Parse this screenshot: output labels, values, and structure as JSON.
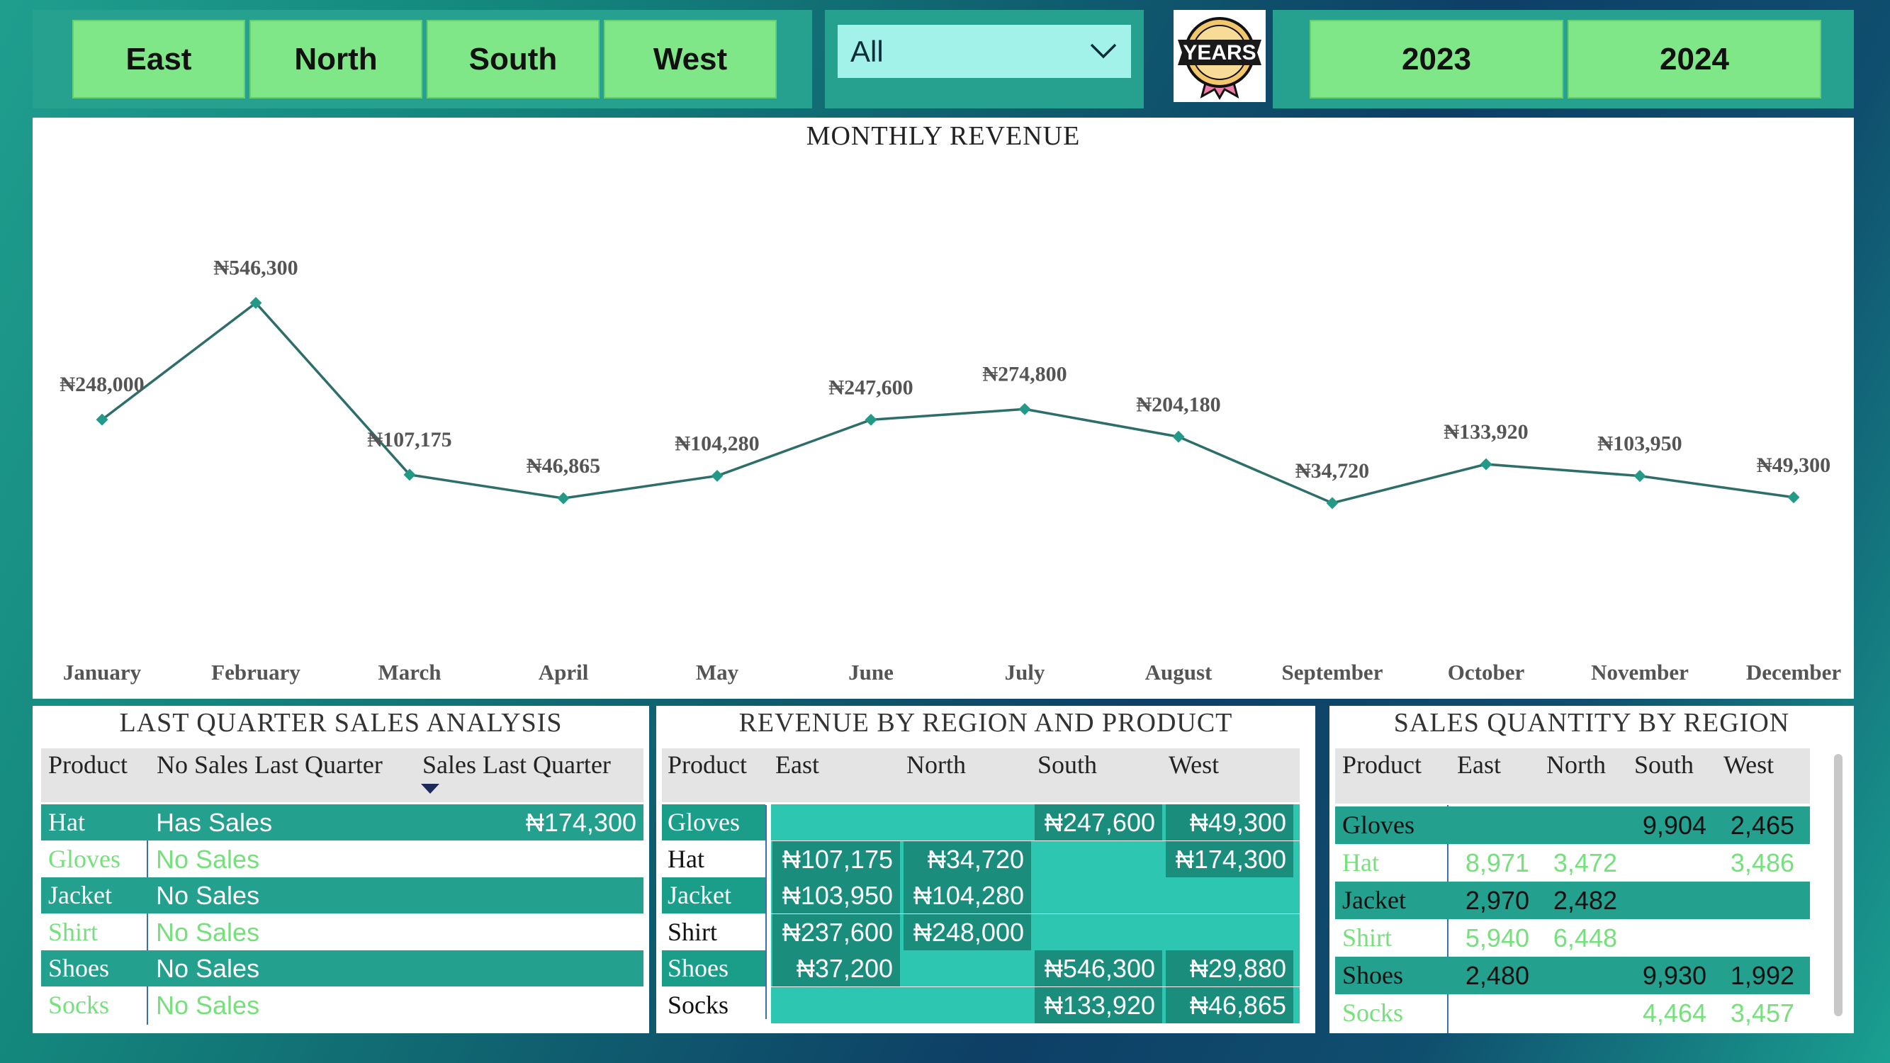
{
  "regions": [
    "East",
    "North",
    "South",
    "West"
  ],
  "dropdown": {
    "value": "All"
  },
  "badge": {
    "text": "YEARS"
  },
  "years": [
    "2023",
    "2024"
  ],
  "colors": {
    "slicer_bg": "#26a08f",
    "button": "#7fe787",
    "line": "#2e6e6a",
    "marker": "#239a88",
    "table_dark_row": "#23a08e",
    "light_text": "#76e07d"
  },
  "chart": {
    "title": "MONTHLY REVENUE"
  },
  "chart_data": {
    "type": "line",
    "title": "MONTHLY REVENUE",
    "categories": [
      "January",
      "February",
      "March",
      "April",
      "May",
      "June",
      "July",
      "August",
      "September",
      "October",
      "November",
      "December"
    ],
    "values": [
      248000,
      546300,
      107175,
      46865,
      104280,
      247600,
      274800,
      204180,
      34720,
      133920,
      103950,
      49300
    ],
    "labels": [
      "₦248,000",
      "₦546,300",
      "₦107,175",
      "₦46,865",
      "₦104,280",
      "₦247,600",
      "₦274,800",
      "₦204,180",
      "₦34,720",
      "₦133,920",
      "₦103,950",
      "₦49,300"
    ],
    "ylim": [
      0,
      560000
    ],
    "grid": false
  },
  "last_quarter": {
    "title": "LAST QUARTER SALES ANALYSIS",
    "headers": [
      "Product",
      "No Sales Last Quarter",
      "Sales Last Quarter"
    ],
    "rows": [
      {
        "product": "Hat",
        "status": "Has Sales",
        "sales": "₦174,300"
      },
      {
        "product": "Gloves",
        "status": "No Sales",
        "sales": ""
      },
      {
        "product": "Jacket",
        "status": "No Sales",
        "sales": ""
      },
      {
        "product": "Shirt",
        "status": "No Sales",
        "sales": ""
      },
      {
        "product": "Shoes",
        "status": "No Sales",
        "sales": ""
      },
      {
        "product": "Socks",
        "status": "No Sales",
        "sales": ""
      }
    ]
  },
  "revenue_region": {
    "title": "REVENUE BY REGION AND PRODUCT",
    "headers": [
      "Product",
      "East",
      "North",
      "South",
      "West"
    ],
    "rows": [
      {
        "product": "Gloves",
        "east": "",
        "north": "",
        "south": "₦247,600",
        "west": "₦49,300"
      },
      {
        "product": "Hat",
        "east": "₦107,175",
        "north": "₦34,720",
        "south": "",
        "west": "₦174,300"
      },
      {
        "product": "Jacket",
        "east": "₦103,950",
        "north": "₦104,280",
        "south": "",
        "west": ""
      },
      {
        "product": "Shirt",
        "east": "₦237,600",
        "north": "₦248,000",
        "south": "",
        "west": ""
      },
      {
        "product": "Shoes",
        "east": "₦37,200",
        "north": "",
        "south": "₦546,300",
        "west": "₦29,880"
      },
      {
        "product": "Socks",
        "east": "",
        "north": "",
        "south": "₦133,920",
        "west": "₦46,865"
      }
    ]
  },
  "quantity_region": {
    "title": "SALES QUANTITY BY REGION",
    "headers": [
      "Product",
      "East",
      "North",
      "South",
      "West"
    ],
    "rows": [
      {
        "product": "Gloves",
        "east": "",
        "north": "",
        "south": "9,904",
        "west": "2,465"
      },
      {
        "product": "Hat",
        "east": "8,971",
        "north": "3,472",
        "south": "",
        "west": "3,486"
      },
      {
        "product": "Jacket",
        "east": "2,970",
        "north": "2,482",
        "south": "",
        "west": ""
      },
      {
        "product": "Shirt",
        "east": "5,940",
        "north": "6,448",
        "south": "",
        "west": ""
      },
      {
        "product": "Shoes",
        "east": "2,480",
        "north": "",
        "south": "9,930",
        "west": "1,992"
      },
      {
        "product": "Socks",
        "east": "",
        "north": "",
        "south": "4,464",
        "west": "3,457"
      }
    ]
  }
}
